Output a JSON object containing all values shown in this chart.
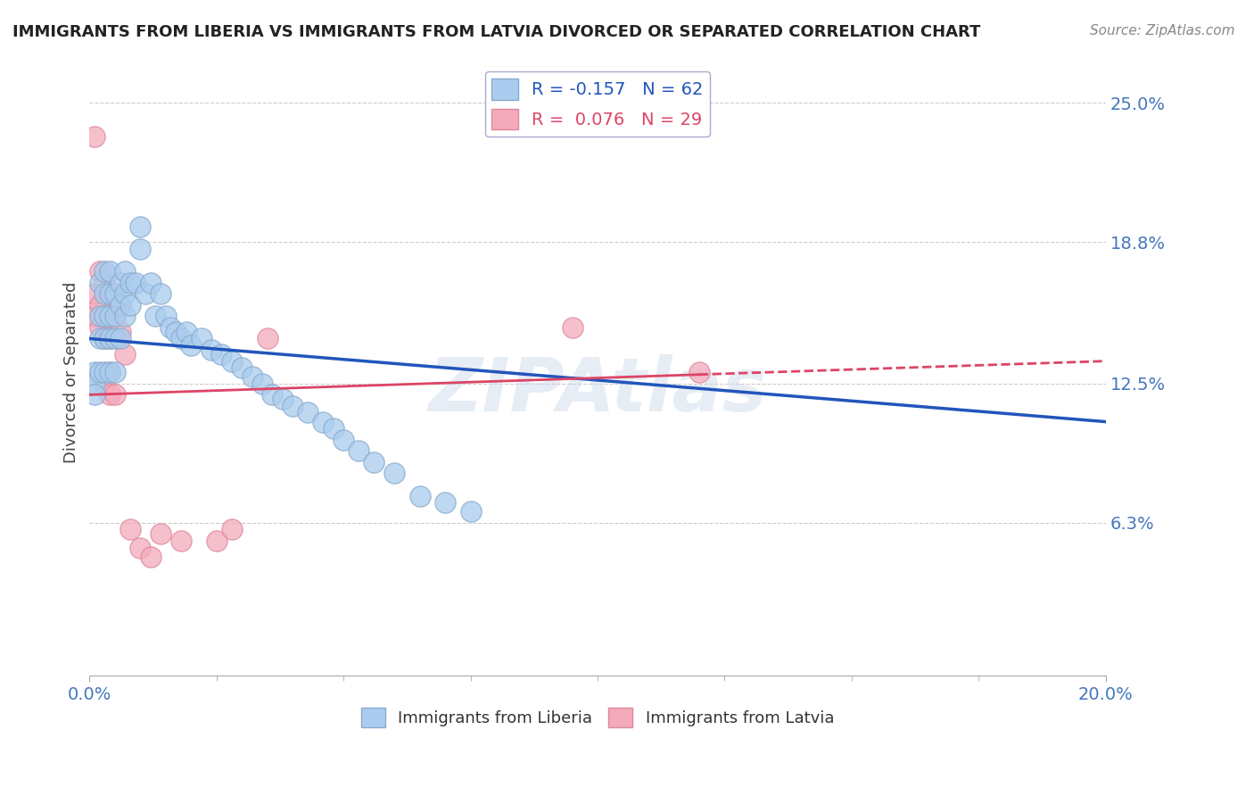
{
  "title": "IMMIGRANTS FROM LIBERIA VS IMMIGRANTS FROM LATVIA DIVORCED OR SEPARATED CORRELATION CHART",
  "source_text": "Source: ZipAtlas.com",
  "ylabel": "Divorced or Separated",
  "xlim": [
    0.0,
    0.2
  ],
  "ylim_min": -0.005,
  "ylim_max": 0.265,
  "ytick_values": [
    0.063,
    0.125,
    0.188,
    0.25
  ],
  "ytick_labels": [
    "6.3%",
    "12.5%",
    "18.8%",
    "25.0%"
  ],
  "gridline_color": "#cccccc",
  "background_color": "#ffffff",
  "liberia_color": "#aaccee",
  "liberia_edge_color": "#88aacc",
  "latvia_color": "#f4aabb",
  "latvia_edge_color": "#dd8899",
  "liberia_line_color": "#2255bb",
  "latvia_line_color": "#dd4466",
  "legend_liberia_label": "R = -0.157   N = 62",
  "legend_latvia_label": "R =  0.076   N = 29",
  "watermark": "ZIPAtlas",
  "lib_trend_start": 0.145,
  "lib_trend_end": 0.108,
  "lat_trend_start": 0.12,
  "lat_trend_end": 0.135,
  "liberia_x": [
    0.001,
    0.001,
    0.001,
    0.002,
    0.002,
    0.002,
    0.002,
    0.003,
    0.003,
    0.003,
    0.003,
    0.003,
    0.004,
    0.004,
    0.004,
    0.004,
    0.004,
    0.005,
    0.005,
    0.005,
    0.005,
    0.006,
    0.006,
    0.006,
    0.007,
    0.007,
    0.007,
    0.008,
    0.008,
    0.009,
    0.01,
    0.01,
    0.011,
    0.012,
    0.013,
    0.014,
    0.015,
    0.016,
    0.017,
    0.018,
    0.019,
    0.02,
    0.022,
    0.024,
    0.026,
    0.028,
    0.03,
    0.032,
    0.034,
    0.036,
    0.038,
    0.04,
    0.043,
    0.046,
    0.048,
    0.05,
    0.053,
    0.056,
    0.06,
    0.065,
    0.07,
    0.075
  ],
  "liberia_y": [
    0.13,
    0.125,
    0.12,
    0.17,
    0.155,
    0.145,
    0.13,
    0.175,
    0.165,
    0.155,
    0.145,
    0.13,
    0.175,
    0.165,
    0.155,
    0.145,
    0.13,
    0.165,
    0.155,
    0.145,
    0.13,
    0.17,
    0.16,
    0.145,
    0.175,
    0.165,
    0.155,
    0.17,
    0.16,
    0.17,
    0.195,
    0.185,
    0.165,
    0.17,
    0.155,
    0.165,
    0.155,
    0.15,
    0.148,
    0.145,
    0.148,
    0.142,
    0.145,
    0.14,
    0.138,
    0.135,
    0.132,
    0.128,
    0.125,
    0.12,
    0.118,
    0.115,
    0.112,
    0.108,
    0.105,
    0.1,
    0.095,
    0.09,
    0.085,
    0.075,
    0.072,
    0.068
  ],
  "latvia_x": [
    0.001,
    0.001,
    0.001,
    0.002,
    0.002,
    0.002,
    0.003,
    0.003,
    0.003,
    0.003,
    0.004,
    0.004,
    0.004,
    0.004,
    0.004,
    0.005,
    0.005,
    0.006,
    0.007,
    0.008,
    0.01,
    0.012,
    0.014,
    0.018,
    0.025,
    0.028,
    0.035,
    0.095,
    0.12
  ],
  "latvia_y": [
    0.235,
    0.165,
    0.155,
    0.175,
    0.16,
    0.15,
    0.17,
    0.155,
    0.145,
    0.125,
    0.165,
    0.155,
    0.145,
    0.13,
    0.12,
    0.155,
    0.12,
    0.148,
    0.138,
    0.06,
    0.052,
    0.048,
    0.058,
    0.055,
    0.055,
    0.06,
    0.145,
    0.15,
    0.13
  ]
}
